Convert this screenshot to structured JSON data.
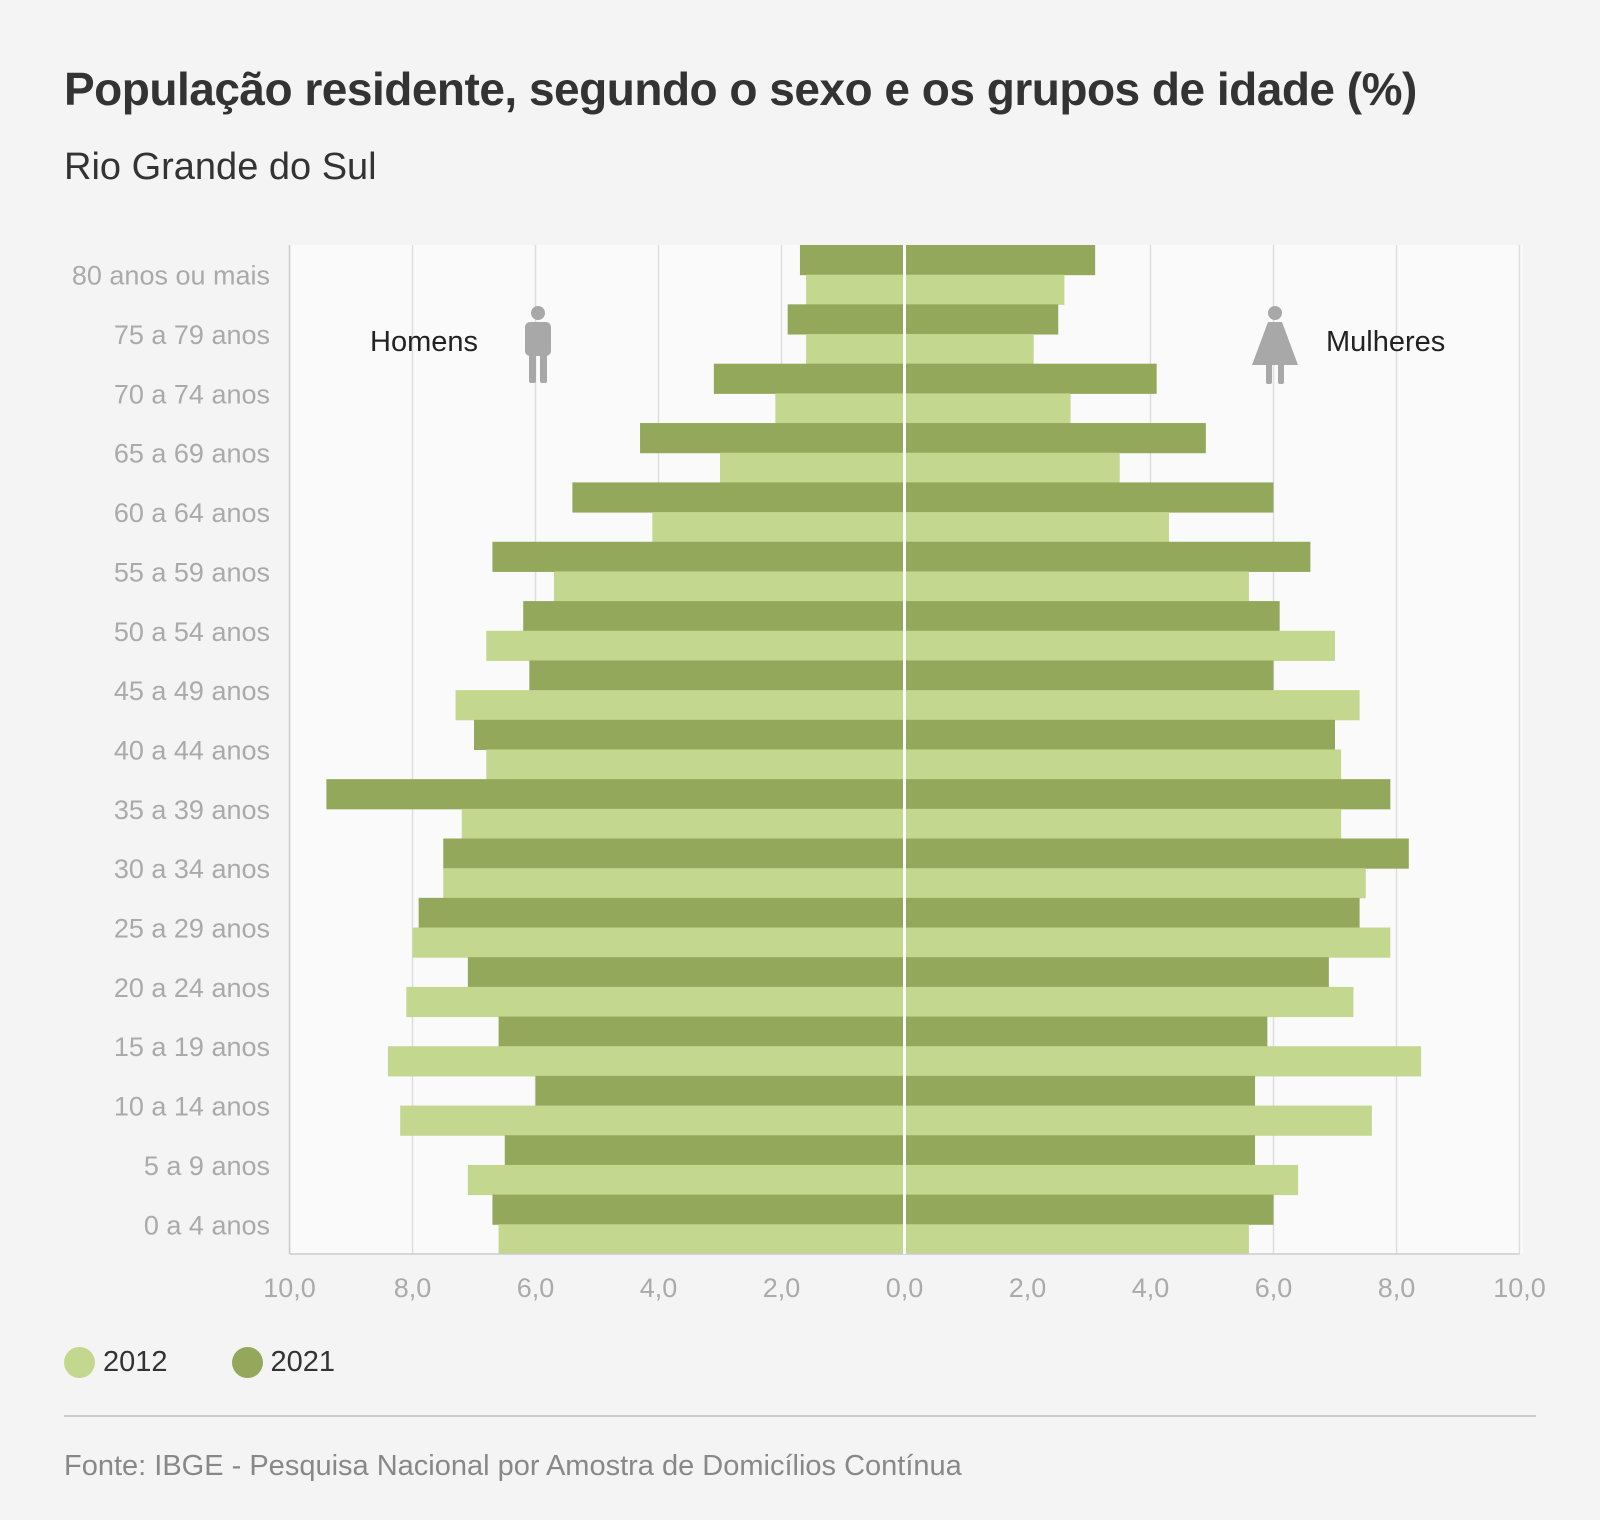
{
  "header": {
    "title": "População residente, segundo o sexo e os grupos de idade (%)",
    "subtitle": "Rio Grande do Sul"
  },
  "colors": {
    "series_2012": "#c3d78f",
    "series_2021": "#93a85b",
    "panel": "#fafafa",
    "grid": "#dddddd",
    "tick_text": "#aaaaaa",
    "icon": "#a8a8a8"
  },
  "icons": {
    "men": "man-icon",
    "women": "woman-icon"
  },
  "chart_data": {
    "type": "bar",
    "orientation": "horizontal-population-pyramid",
    "title": "População residente, segundo o sexo e os grupos de idade (%)",
    "subtitle": "Rio Grande do Sul",
    "categories": [
      "80 anos ou mais",
      "75 a 79 anos",
      "70 a 74 anos",
      "65 a 69 anos",
      "60 a 64 anos",
      "55 a 59 anos",
      "50 a 54 anos",
      "45 a 49 anos",
      "40 a 44 anos",
      "35 a 39 anos",
      "30 a 34 anos",
      "25 a 29 anos",
      "20 a 24 anos",
      "15 a 19 anos",
      "10 a 14 anos",
      "5 a 9 anos",
      "0 a 4 anos"
    ],
    "side_labels": {
      "left": "Homens",
      "right": "Mulheres"
    },
    "series": [
      {
        "name": "2012",
        "men": [
          1.6,
          1.6,
          2.1,
          3.0,
          4.1,
          5.7,
          6.8,
          7.3,
          6.8,
          7.2,
          7.5,
          8.0,
          8.1,
          8.4,
          8.2,
          7.1,
          6.6
        ],
        "women": [
          2.6,
          2.1,
          2.7,
          3.5,
          4.3,
          5.6,
          7.0,
          7.4,
          7.1,
          7.1,
          7.5,
          7.9,
          7.3,
          8.4,
          7.6,
          6.4,
          5.6
        ]
      },
      {
        "name": "2021",
        "men": [
          1.7,
          1.9,
          3.1,
          4.3,
          5.4,
          6.7,
          6.2,
          6.1,
          7.0,
          9.4,
          7.5,
          7.9,
          7.1,
          6.6,
          6.0,
          6.5,
          6.7
        ],
        "women": [
          3.1,
          2.5,
          4.1,
          4.9,
          6.0,
          6.6,
          6.1,
          6.0,
          7.0,
          7.9,
          8.2,
          7.4,
          6.9,
          5.9,
          5.7,
          5.7,
          6.0
        ]
      }
    ],
    "x_ticks": [
      "10,0",
      "8,0",
      "6,0",
      "4,0",
      "2,0",
      "0,0",
      "2,0",
      "4,0",
      "6,0",
      "8,0",
      "10,0"
    ],
    "xlim": [
      -10,
      10
    ],
    "grid": true,
    "legend": "bottom-left"
  },
  "legend": [
    {
      "label": "2012"
    },
    {
      "label": "2021"
    }
  ],
  "footer": {
    "source": "Fonte: IBGE - Pesquisa Nacional por Amostra de Domicílios Contínua"
  }
}
